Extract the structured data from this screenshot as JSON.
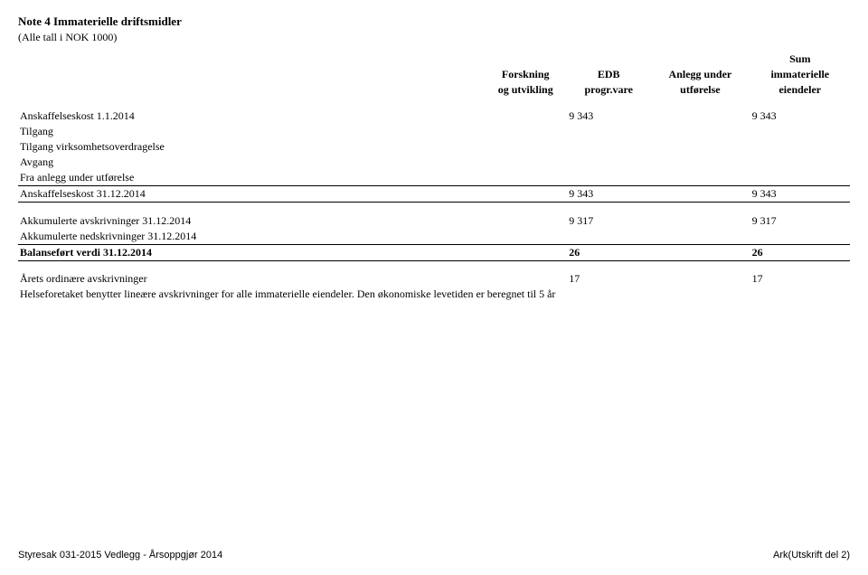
{
  "title": "Note 4 Immaterielle driftsmidler",
  "subtitle": "(Alle tall i NOK 1000)",
  "headers": {
    "col1_line1": "Forskning",
    "col1_line2": "og utvikling",
    "col2_line1": "EDB",
    "col2_line2": "progr.vare",
    "col3_line1": "Anlegg under",
    "col3_line2": "utførelse",
    "col4_line0": "Sum",
    "col4_line1": "immaterielle",
    "col4_line2": "eiendeler"
  },
  "rows": {
    "anskaffelseskost_start": {
      "label": "Anskaffelseskost 1.1.2014",
      "col2": "9 343",
      "col4": "9 343"
    },
    "tilgang": {
      "label": "Tilgang"
    },
    "tilgang_virksomhet": {
      "label": "Tilgang virksomhetsoverdragelse"
    },
    "avgang": {
      "label": "Avgang"
    },
    "fra_anlegg": {
      "label": "Fra anlegg under utførelse"
    },
    "anskaffelseskost_end": {
      "label": "Anskaffelseskost 31.12.2014",
      "col2": "9 343",
      "col4": "9 343"
    },
    "akk_avskr": {
      "label": "Akkumulerte avskrivninger 31.12.2014",
      "col2": "9 317",
      "col4": "9 317"
    },
    "akk_nedskr": {
      "label": "Akkumulerte nedskrivninger 31.12.2014"
    },
    "balansefort": {
      "label": "Balanseført verdi 31.12.2014",
      "col2": "26",
      "col4": "26"
    },
    "arets_ord": {
      "label": "Årets ordinære avskrivninger",
      "col2": "17",
      "col4": "17"
    },
    "note_text": "Helseforetaket benytter lineære avskrivninger for alle immaterielle eiendeler. Den økonomiske levetiden er beregnet til 5 år"
  },
  "footer": {
    "left": "Styresak 031-2015 Vedlegg - Årsoppgjør 2014",
    "right": "Ark(Utskrift del 2)"
  }
}
